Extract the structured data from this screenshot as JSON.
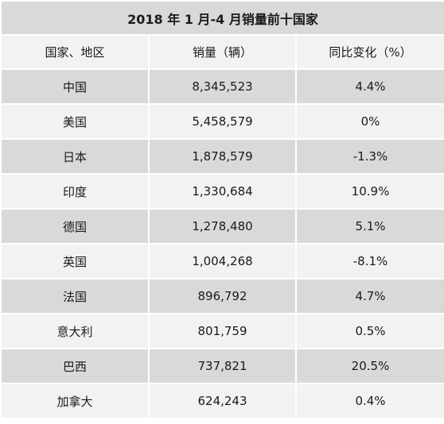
{
  "table": {
    "title": "2018 年 1 月-4 月销量前十国家",
    "headers": [
      "国家、地区",
      "销量（辆）",
      "同比变化（%）"
    ],
    "rows": [
      {
        "country": "中国",
        "sales": "8,345,523",
        "change": "4.4%"
      },
      {
        "country": "美国",
        "sales": "5,458,579",
        "change": "0%"
      },
      {
        "country": "日本",
        "sales": "1,878,579",
        "change": "-1.3%"
      },
      {
        "country": "印度",
        "sales": "1,330,684",
        "change": "10.9%"
      },
      {
        "country": "德国",
        "sales": "1,278,480",
        "change": "5.1%"
      },
      {
        "country": "英国",
        "sales": "1,004,268",
        "change": "-8.1%"
      },
      {
        "country": "法国",
        "sales": "896,792",
        "change": "4.7%"
      },
      {
        "country": "意大利",
        "sales": "801,759",
        "change": "0.5%"
      },
      {
        "country": "巴西",
        "sales": "737,821",
        "change": "20.5%"
      },
      {
        "country": "加拿大",
        "sales": "624,243",
        "change": "0.4%"
      }
    ]
  }
}
